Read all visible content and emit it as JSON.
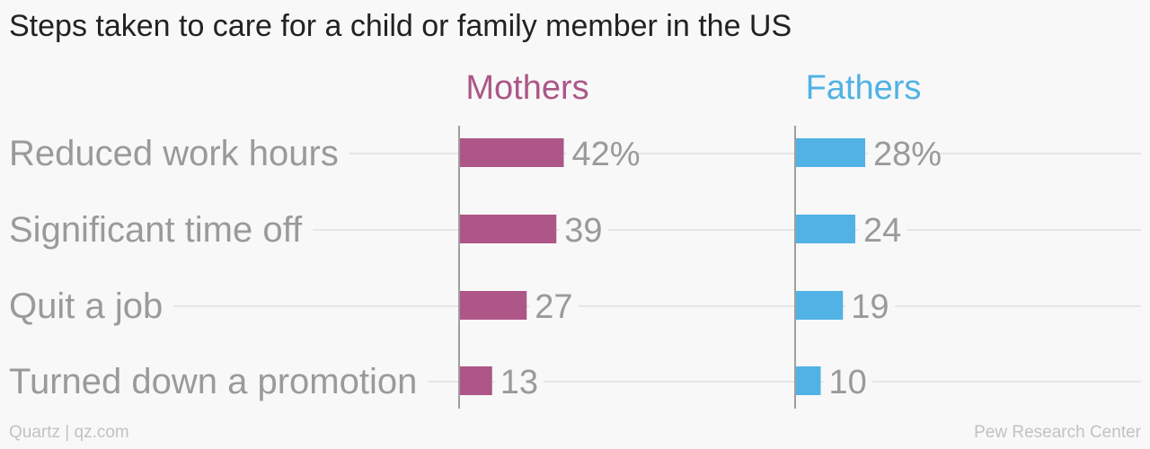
{
  "title": "Steps taken to care for a child or family member in the US",
  "footer": {
    "left": "Quartz | qz.com",
    "right": "Pew Research Center"
  },
  "colors": {
    "mothers": "#ad5687",
    "fathers": "#51b2e5",
    "label": "#9a9a9a",
    "gridline": "#e6e6e6"
  },
  "chart_data": {
    "type": "bar",
    "categories": [
      "Reduced work hours",
      "Significant time off",
      "Quit a job",
      "Turned down a promotion"
    ],
    "series": [
      {
        "name": "Mothers",
        "values": [
          42,
          39,
          27,
          13
        ],
        "labels": [
          "42%",
          "39",
          "27",
          "13"
        ]
      },
      {
        "name": "Fathers",
        "values": [
          28,
          24,
          19,
          10
        ],
        "labels": [
          "28%",
          "24",
          "19",
          "10"
        ]
      }
    ],
    "value_unit": "%",
    "grid": true
  }
}
